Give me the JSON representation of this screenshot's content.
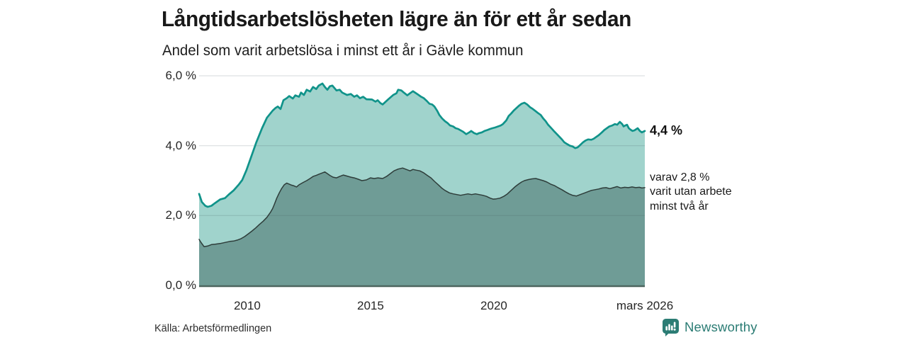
{
  "header": {
    "title": "Långtidsarbetslösheten lägre än för ett år sedan",
    "subtitle": "Andel som varit arbetslösa i minst ett år i Gävle kommun"
  },
  "footer": {
    "source": "Källa: Arbetsförmedlingen",
    "brand": "Newsworthy",
    "brand_icon": "newsworthy-bar-chart-bubble-icon",
    "brand_color": "#2b7c74"
  },
  "chart_data": {
    "type": "area",
    "title": "Långtidsarbetslösheten lägre än för ett år sedan",
    "subtitle": "Andel som varit arbetslösa i minst ett år i Gävle kommun",
    "x_domain": [
      2008.05,
      2026.12
    ],
    "y_domain": [
      0,
      6
    ],
    "grid": true,
    "grid_color": "rgba(70,85,90,0.22)",
    "axis_color": "#4d6660",
    "yticks": [
      {
        "v": 0,
        "label": "0,0 %"
      },
      {
        "v": 2,
        "label": "2,0 %"
      },
      {
        "v": 4,
        "label": "4,0 %"
      },
      {
        "v": 6,
        "label": "6,0 %"
      }
    ],
    "xticks": [
      {
        "v": 2010,
        "label": "2010"
      },
      {
        "v": 2015,
        "label": "2015"
      },
      {
        "v": 2020,
        "label": "2020"
      },
      {
        "v": 2026.12,
        "label": "mars 2026"
      }
    ],
    "series": [
      {
        "id": "minst-ett-ar",
        "name": "Andel arbetslösa minst ett år",
        "color": "#10938a",
        "fill": "#a0d3cc",
        "line_width": 2.7,
        "end_value": 4.4,
        "end_label": "4,4 %",
        "points": [
          [
            2008.05,
            2.62
          ],
          [
            2008.16,
            2.39
          ],
          [
            2008.3,
            2.28
          ],
          [
            2008.4,
            2.25
          ],
          [
            2008.55,
            2.28
          ],
          [
            2008.7,
            2.36
          ],
          [
            2008.9,
            2.46
          ],
          [
            2009.1,
            2.5
          ],
          [
            2009.25,
            2.6
          ],
          [
            2009.45,
            2.72
          ],
          [
            2009.65,
            2.88
          ],
          [
            2009.8,
            3.02
          ],
          [
            2009.97,
            3.3
          ],
          [
            2010.17,
            3.7
          ],
          [
            2010.37,
            4.1
          ],
          [
            2010.6,
            4.5
          ],
          [
            2010.8,
            4.8
          ],
          [
            2011.03,
            5.0
          ],
          [
            2011.15,
            5.08
          ],
          [
            2011.24,
            5.12
          ],
          [
            2011.35,
            5.05
          ],
          [
            2011.47,
            5.3
          ],
          [
            2011.6,
            5.36
          ],
          [
            2011.7,
            5.42
          ],
          [
            2011.85,
            5.35
          ],
          [
            2011.95,
            5.44
          ],
          [
            2012.1,
            5.4
          ],
          [
            2012.18,
            5.52
          ],
          [
            2012.3,
            5.45
          ],
          [
            2012.41,
            5.6
          ],
          [
            2012.55,
            5.55
          ],
          [
            2012.67,
            5.68
          ],
          [
            2012.8,
            5.62
          ],
          [
            2012.9,
            5.72
          ],
          [
            2013.05,
            5.78
          ],
          [
            2013.15,
            5.68
          ],
          [
            2013.25,
            5.6
          ],
          [
            2013.35,
            5.7
          ],
          [
            2013.45,
            5.72
          ],
          [
            2013.62,
            5.58
          ],
          [
            2013.75,
            5.6
          ],
          [
            2013.85,
            5.52
          ],
          [
            2014.05,
            5.45
          ],
          [
            2014.2,
            5.48
          ],
          [
            2014.34,
            5.4
          ],
          [
            2014.45,
            5.44
          ],
          [
            2014.57,
            5.36
          ],
          [
            2014.7,
            5.4
          ],
          [
            2014.83,
            5.33
          ],
          [
            2015.06,
            5.32
          ],
          [
            2015.2,
            5.26
          ],
          [
            2015.29,
            5.3
          ],
          [
            2015.4,
            5.22
          ],
          [
            2015.49,
            5.18
          ],
          [
            2015.6,
            5.25
          ],
          [
            2015.72,
            5.33
          ],
          [
            2015.92,
            5.45
          ],
          [
            2016.05,
            5.5
          ],
          [
            2016.12,
            5.6
          ],
          [
            2016.25,
            5.58
          ],
          [
            2016.35,
            5.52
          ],
          [
            2016.49,
            5.44
          ],
          [
            2016.6,
            5.5
          ],
          [
            2016.72,
            5.56
          ],
          [
            2016.85,
            5.5
          ],
          [
            2016.93,
            5.46
          ],
          [
            2017.05,
            5.4
          ],
          [
            2017.16,
            5.36
          ],
          [
            2017.28,
            5.28
          ],
          [
            2017.39,
            5.2
          ],
          [
            2017.5,
            5.18
          ],
          [
            2017.59,
            5.12
          ],
          [
            2017.7,
            5.0
          ],
          [
            2017.79,
            4.88
          ],
          [
            2017.9,
            4.78
          ],
          [
            2018.02,
            4.7
          ],
          [
            2018.12,
            4.65
          ],
          [
            2018.22,
            4.58
          ],
          [
            2018.35,
            4.55
          ],
          [
            2018.45,
            4.5
          ],
          [
            2018.55,
            4.48
          ],
          [
            2018.65,
            4.44
          ],
          [
            2018.75,
            4.4
          ],
          [
            2018.88,
            4.33
          ],
          [
            2019.0,
            4.38
          ],
          [
            2019.08,
            4.42
          ],
          [
            2019.2,
            4.36
          ],
          [
            2019.31,
            4.33
          ],
          [
            2019.4,
            4.36
          ],
          [
            2019.51,
            4.38
          ],
          [
            2019.62,
            4.42
          ],
          [
            2019.74,
            4.45
          ],
          [
            2019.85,
            4.48
          ],
          [
            2019.94,
            4.5
          ],
          [
            2020.05,
            4.52
          ],
          [
            2020.17,
            4.55
          ],
          [
            2020.28,
            4.58
          ],
          [
            2020.37,
            4.62
          ],
          [
            2020.5,
            4.72
          ],
          [
            2020.6,
            4.85
          ],
          [
            2020.7,
            4.92
          ],
          [
            2020.8,
            5.0
          ],
          [
            2020.92,
            5.08
          ],
          [
            2021.03,
            5.15
          ],
          [
            2021.12,
            5.2
          ],
          [
            2021.24,
            5.23
          ],
          [
            2021.35,
            5.18
          ],
          [
            2021.47,
            5.1
          ],
          [
            2021.58,
            5.05
          ],
          [
            2021.67,
            5.0
          ],
          [
            2021.78,
            4.94
          ],
          [
            2021.9,
            4.88
          ],
          [
            2022.0,
            4.78
          ],
          [
            2022.1,
            4.7
          ],
          [
            2022.2,
            4.6
          ],
          [
            2022.33,
            4.5
          ],
          [
            2022.43,
            4.42
          ],
          [
            2022.53,
            4.35
          ],
          [
            2022.65,
            4.26
          ],
          [
            2022.76,
            4.18
          ],
          [
            2022.85,
            4.1
          ],
          [
            2022.96,
            4.05
          ],
          [
            2023.08,
            4.0
          ],
          [
            2023.19,
            3.98
          ],
          [
            2023.3,
            3.93
          ],
          [
            2023.39,
            3.95
          ],
          [
            2023.5,
            4.02
          ],
          [
            2023.62,
            4.1
          ],
          [
            2023.72,
            4.15
          ],
          [
            2023.82,
            4.18
          ],
          [
            2023.95,
            4.17
          ],
          [
            2024.05,
            4.2
          ],
          [
            2024.15,
            4.25
          ],
          [
            2024.25,
            4.3
          ],
          [
            2024.38,
            4.38
          ],
          [
            2024.48,
            4.45
          ],
          [
            2024.58,
            4.5
          ],
          [
            2024.68,
            4.55
          ],
          [
            2024.8,
            4.58
          ],
          [
            2024.91,
            4.62
          ],
          [
            2025.0,
            4.6
          ],
          [
            2025.11,
            4.68
          ],
          [
            2025.2,
            4.62
          ],
          [
            2025.26,
            4.55
          ],
          [
            2025.33,
            4.58
          ],
          [
            2025.4,
            4.6
          ],
          [
            2025.47,
            4.5
          ],
          [
            2025.54,
            4.46
          ],
          [
            2025.62,
            4.42
          ],
          [
            2025.7,
            4.44
          ],
          [
            2025.83,
            4.5
          ],
          [
            2025.92,
            4.42
          ],
          [
            2026.0,
            4.38
          ],
          [
            2026.12,
            4.42
          ]
        ]
      },
      {
        "id": "minst-tva-ar",
        "name": "varav utan arbete minst två år",
        "color": "#2e3d3a",
        "fill": "#6f9c96",
        "line_width": 1.5,
        "end_value": 2.8,
        "end_label": "varav 2,8 %\nvarit utan arbete\nminst två år",
        "points": [
          [
            2008.05,
            1.32
          ],
          [
            2008.1,
            1.26
          ],
          [
            2008.16,
            1.2
          ],
          [
            2008.25,
            1.11
          ],
          [
            2008.4,
            1.13
          ],
          [
            2008.55,
            1.17
          ],
          [
            2008.7,
            1.18
          ],
          [
            2008.9,
            1.2
          ],
          [
            2009.1,
            1.23
          ],
          [
            2009.3,
            1.26
          ],
          [
            2009.45,
            1.27
          ],
          [
            2009.6,
            1.3
          ],
          [
            2009.75,
            1.34
          ],
          [
            2009.9,
            1.4
          ],
          [
            2010.05,
            1.48
          ],
          [
            2010.2,
            1.56
          ],
          [
            2010.35,
            1.65
          ],
          [
            2010.5,
            1.75
          ],
          [
            2010.65,
            1.84
          ],
          [
            2010.8,
            1.95
          ],
          [
            2010.95,
            2.1
          ],
          [
            2011.03,
            2.2
          ],
          [
            2011.1,
            2.32
          ],
          [
            2011.2,
            2.5
          ],
          [
            2011.3,
            2.65
          ],
          [
            2011.4,
            2.78
          ],
          [
            2011.5,
            2.88
          ],
          [
            2011.6,
            2.93
          ],
          [
            2011.7,
            2.9
          ],
          [
            2011.8,
            2.87
          ],
          [
            2011.9,
            2.85
          ],
          [
            2012.0,
            2.82
          ],
          [
            2012.1,
            2.88
          ],
          [
            2012.2,
            2.92
          ],
          [
            2012.3,
            2.96
          ],
          [
            2012.41,
            3.0
          ],
          [
            2012.55,
            3.06
          ],
          [
            2012.67,
            3.12
          ],
          [
            2012.8,
            3.15
          ],
          [
            2012.9,
            3.18
          ],
          [
            2013.05,
            3.22
          ],
          [
            2013.15,
            3.25
          ],
          [
            2013.25,
            3.2
          ],
          [
            2013.35,
            3.15
          ],
          [
            2013.48,
            3.1
          ],
          [
            2013.62,
            3.08
          ],
          [
            2013.75,
            3.12
          ],
          [
            2013.9,
            3.16
          ],
          [
            2014.05,
            3.13
          ],
          [
            2014.2,
            3.1
          ],
          [
            2014.34,
            3.08
          ],
          [
            2014.5,
            3.04
          ],
          [
            2014.65,
            3.0
          ],
          [
            2014.83,
            3.02
          ],
          [
            2015.0,
            3.08
          ],
          [
            2015.15,
            3.06
          ],
          [
            2015.3,
            3.08
          ],
          [
            2015.49,
            3.06
          ],
          [
            2015.65,
            3.12
          ],
          [
            2015.8,
            3.2
          ],
          [
            2015.95,
            3.28
          ],
          [
            2016.12,
            3.33
          ],
          [
            2016.3,
            3.36
          ],
          [
            2016.45,
            3.32
          ],
          [
            2016.6,
            3.28
          ],
          [
            2016.72,
            3.32
          ],
          [
            2016.85,
            3.3
          ],
          [
            2017.0,
            3.28
          ],
          [
            2017.16,
            3.22
          ],
          [
            2017.3,
            3.15
          ],
          [
            2017.45,
            3.08
          ],
          [
            2017.59,
            2.98
          ],
          [
            2017.75,
            2.88
          ],
          [
            2017.9,
            2.78
          ],
          [
            2018.02,
            2.72
          ],
          [
            2018.2,
            2.65
          ],
          [
            2018.35,
            2.62
          ],
          [
            2018.5,
            2.6
          ],
          [
            2018.65,
            2.58
          ],
          [
            2018.8,
            2.6
          ],
          [
            2018.95,
            2.62
          ],
          [
            2019.1,
            2.6
          ],
          [
            2019.25,
            2.62
          ],
          [
            2019.4,
            2.6
          ],
          [
            2019.55,
            2.58
          ],
          [
            2019.7,
            2.55
          ],
          [
            2019.85,
            2.5
          ],
          [
            2019.97,
            2.47
          ],
          [
            2020.1,
            2.48
          ],
          [
            2020.25,
            2.5
          ],
          [
            2020.4,
            2.55
          ],
          [
            2020.55,
            2.62
          ],
          [
            2020.7,
            2.72
          ],
          [
            2020.85,
            2.82
          ],
          [
            2021.0,
            2.9
          ],
          [
            2021.12,
            2.96
          ],
          [
            2021.24,
            3.0
          ],
          [
            2021.4,
            3.03
          ],
          [
            2021.55,
            3.05
          ],
          [
            2021.7,
            3.06
          ],
          [
            2021.85,
            3.03
          ],
          [
            2022.0,
            3.0
          ],
          [
            2022.15,
            2.96
          ],
          [
            2022.3,
            2.9
          ],
          [
            2022.45,
            2.86
          ],
          [
            2022.6,
            2.8
          ],
          [
            2022.76,
            2.74
          ],
          [
            2022.9,
            2.68
          ],
          [
            2023.05,
            2.62
          ],
          [
            2023.19,
            2.58
          ],
          [
            2023.35,
            2.56
          ],
          [
            2023.5,
            2.6
          ],
          [
            2023.65,
            2.64
          ],
          [
            2023.8,
            2.68
          ],
          [
            2023.95,
            2.72
          ],
          [
            2024.1,
            2.74
          ],
          [
            2024.25,
            2.76
          ],
          [
            2024.4,
            2.79
          ],
          [
            2024.55,
            2.8
          ],
          [
            2024.7,
            2.77
          ],
          [
            2024.85,
            2.8
          ],
          [
            2025.0,
            2.83
          ],
          [
            2025.15,
            2.79
          ],
          [
            2025.3,
            2.81
          ],
          [
            2025.45,
            2.8
          ],
          [
            2025.6,
            2.82
          ],
          [
            2025.75,
            2.8
          ],
          [
            2025.9,
            2.81
          ],
          [
            2026.0,
            2.79
          ],
          [
            2026.12,
            2.8
          ]
        ]
      }
    ]
  }
}
